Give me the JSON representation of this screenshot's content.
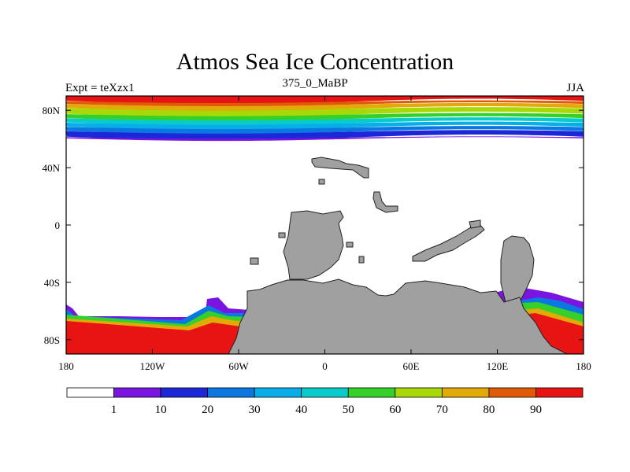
{
  "chart_data": {
    "type": "heatmap",
    "title": "Atmos Sea Ice Concentration",
    "subtitle_left": "Expt = teXzx1",
    "subtitle_center": "375_0_MaBP",
    "subtitle_right": "JJA",
    "x_ticks": [
      {
        "value": -180,
        "label": "180"
      },
      {
        "value": -120,
        "label": "120W"
      },
      {
        "value": -60,
        "label": "60W"
      },
      {
        "value": 0,
        "label": "0"
      },
      {
        "value": 60,
        "label": "60E"
      },
      {
        "value": 120,
        "label": "120E"
      },
      {
        "value": 180,
        "label": "180"
      }
    ],
    "y_ticks": [
      {
        "value": 80,
        "label": "80N"
      },
      {
        "value": 40,
        "label": "40N"
      },
      {
        "value": 0,
        "label": "0"
      },
      {
        "value": -40,
        "label": "40S"
      },
      {
        "value": -80,
        "label": "80S"
      }
    ],
    "xlim": [
      -180,
      180
    ],
    "ylim": [
      -90,
      90
    ],
    "units": "%",
    "colorbar": {
      "levels": [
        1,
        10,
        20,
        30,
        40,
        50,
        60,
        70,
        80,
        90
      ],
      "colors": [
        "#ffffff",
        "#7a14e0",
        "#1c28d8",
        "#0a78e0",
        "#08aee8",
        "#08cccc",
        "#36d02a",
        "#a8d808",
        "#e2aa08",
        "#e05a08",
        "#e81414"
      ]
    },
    "land_color": "#a0a0a0",
    "northern_ice_bands": [
      {
        "level": 90,
        "top_lat": 90,
        "bottom_lat": 86
      },
      {
        "level": 80,
        "top_lat": 86,
        "bottom_lat": 84
      },
      {
        "level": 70,
        "top_lat": 84,
        "bottom_lat": 81
      },
      {
        "level": 60,
        "top_lat": 81,
        "bottom_lat": 77
      },
      {
        "level": 50,
        "top_lat": 77,
        "bottom_lat": 74
      },
      {
        "level": 40,
        "top_lat": 74,
        "bottom_lat": 71
      },
      {
        "level": 30,
        "top_lat": 71,
        "bottom_lat": 68
      },
      {
        "level": 20,
        "top_lat": 68,
        "bottom_lat": 65
      },
      {
        "level": 10,
        "top_lat": 65,
        "bottom_lat": 61
      },
      {
        "level": 1,
        "top_lat": 61,
        "bottom_lat": 60
      }
    ]
  }
}
